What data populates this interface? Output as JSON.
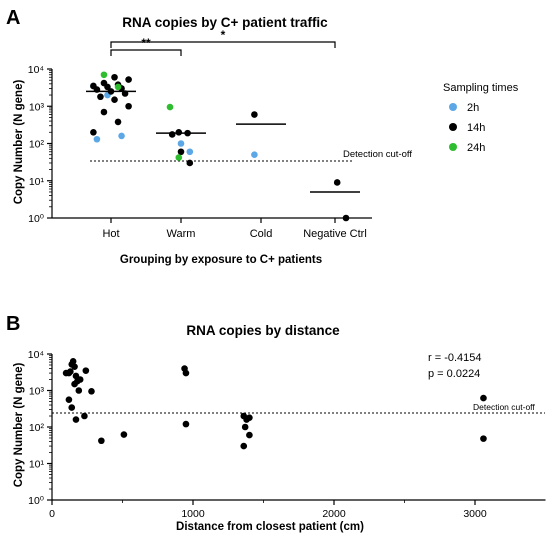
{
  "chart_data": [
    {
      "type": "scatter",
      "panel_label": "A",
      "title": "RNA copies by C+ patient traffic",
      "xlabel": "Grouping by exposure to C+ patients",
      "ylabel": "Copy Number (N gene)",
      "yscale": "log",
      "ylim": [
        1,
        10000
      ],
      "yticks": [
        "10⁰",
        "10¹",
        "10²",
        "10³",
        "10⁴"
      ],
      "categories": [
        "Hot",
        "Warm",
        "Cold",
        "Negative Ctrl"
      ],
      "legend": {
        "title": "Sampling times",
        "placement": "right",
        "entries": [
          {
            "label": "2h",
            "color": "#5ca8e6"
          },
          {
            "label": "14h",
            "color": "#000000"
          },
          {
            "label": "24h",
            "color": "#2ebd2e"
          }
        ]
      },
      "series": [
        {
          "name": "2h",
          "color": "#5ca8e6",
          "points": [
            {
              "category": "Hot",
              "y": 3500
            },
            {
              "category": "Hot",
              "y": 2000
            },
            {
              "category": "Hot",
              "y": 160
            },
            {
              "category": "Hot",
              "y": 130
            },
            {
              "category": "Warm",
              "y": 100
            },
            {
              "category": "Warm",
              "y": 60
            },
            {
              "category": "Cold",
              "y": 50
            }
          ]
        },
        {
          "name": "14h",
          "color": "#000000",
          "points": [
            {
              "category": "Hot",
              "y": 6000
            },
            {
              "category": "Hot",
              "y": 5200
            },
            {
              "category": "Hot",
              "y": 4200
            },
            {
              "category": "Hot",
              "y": 3800
            },
            {
              "category": "Hot",
              "y": 3500
            },
            {
              "category": "Hot",
              "y": 3300
            },
            {
              "category": "Hot",
              "y": 3000
            },
            {
              "category": "Hot",
              "y": 2800
            },
            {
              "category": "Hot",
              "y": 2500
            },
            {
              "category": "Hot",
              "y": 2200
            },
            {
              "category": "Hot",
              "y": 1800
            },
            {
              "category": "Hot",
              "y": 1500
            },
            {
              "category": "Hot",
              "y": 1000
            },
            {
              "category": "Hot",
              "y": 700
            },
            {
              "category": "Hot",
              "y": 380
            },
            {
              "category": "Hot",
              "y": 200
            },
            {
              "category": "Warm",
              "y": 200
            },
            {
              "category": "Warm",
              "y": 190
            },
            {
              "category": "Warm",
              "y": 175
            },
            {
              "category": "Warm",
              "y": 60
            },
            {
              "category": "Warm",
              "y": 30
            },
            {
              "category": "Cold",
              "y": 600
            },
            {
              "category": "Negative Ctrl",
              "y": 9
            },
            {
              "category": "Negative Ctrl",
              "y": 1
            }
          ]
        },
        {
          "name": "24h",
          "color": "#2ebd2e",
          "points": [
            {
              "category": "Hot",
              "y": 7000
            },
            {
              "category": "Hot",
              "y": 3300
            },
            {
              "category": "Warm",
              "y": 950
            },
            {
              "category": "Warm",
              "y": 42
            }
          ]
        }
      ],
      "medians": [
        {
          "category": "Hot",
          "y": 2500
        },
        {
          "category": "Warm",
          "y": 190
        },
        {
          "category": "Cold",
          "y": 330
        },
        {
          "category": "Negative Ctrl",
          "y": 5
        }
      ],
      "detection_cutoff": {
        "label": "Detection cut-off",
        "y": 35
      },
      "significance": [
        {
          "from": "Hot",
          "to": "Warm",
          "label": "**"
        },
        {
          "from": "Hot",
          "to": "Negative Ctrl",
          "label": "*"
        }
      ]
    },
    {
      "type": "scatter",
      "panel_label": "B",
      "title": "RNA copies by distance",
      "xlabel": "Distance from closest patient (cm)",
      "ylabel": "Copy Number (N gene)",
      "yscale": "log",
      "ylim": [
        1,
        10000
      ],
      "yticks": [
        "10⁰",
        "10¹",
        "10²",
        "10³",
        "10⁴"
      ],
      "xlim": [
        0,
        3500
      ],
      "xticks": [
        "0",
        "1000",
        "2000",
        "3000"
      ],
      "detection_cutoff": {
        "label": "Detection cut-off",
        "y": 35
      },
      "stats": [
        "r = -0.4154",
        "p = 0.0224"
      ],
      "points": [
        {
          "x": 100,
          "y": 3000
        },
        {
          "x": 120,
          "y": 3000
        },
        {
          "x": 130,
          "y": 3300
        },
        {
          "x": 140,
          "y": 5200
        },
        {
          "x": 150,
          "y": 6300
        },
        {
          "x": 160,
          "y": 4500
        },
        {
          "x": 170,
          "y": 2500
        },
        {
          "x": 180,
          "y": 1800
        },
        {
          "x": 160,
          "y": 1500
        },
        {
          "x": 200,
          "y": 2000
        },
        {
          "x": 190,
          "y": 1000
        },
        {
          "x": 120,
          "y": 560
        },
        {
          "x": 140,
          "y": 340
        },
        {
          "x": 170,
          "y": 160
        },
        {
          "x": 230,
          "y": 200
        },
        {
          "x": 240,
          "y": 3500
        },
        {
          "x": 280,
          "y": 950
        },
        {
          "x": 350,
          "y": 42
        },
        {
          "x": 510,
          "y": 62
        },
        {
          "x": 940,
          "y": 4000
        },
        {
          "x": 950,
          "y": 3000
        },
        {
          "x": 950,
          "y": 120
        },
        {
          "x": 1360,
          "y": 200
        },
        {
          "x": 1380,
          "y": 160
        },
        {
          "x": 1370,
          "y": 100
        },
        {
          "x": 1400,
          "y": 180
        },
        {
          "x": 1400,
          "y": 60
        },
        {
          "x": 1360,
          "y": 30
        },
        {
          "x": 3060,
          "y": 620
        },
        {
          "x": 3060,
          "y": 48
        }
      ]
    }
  ]
}
